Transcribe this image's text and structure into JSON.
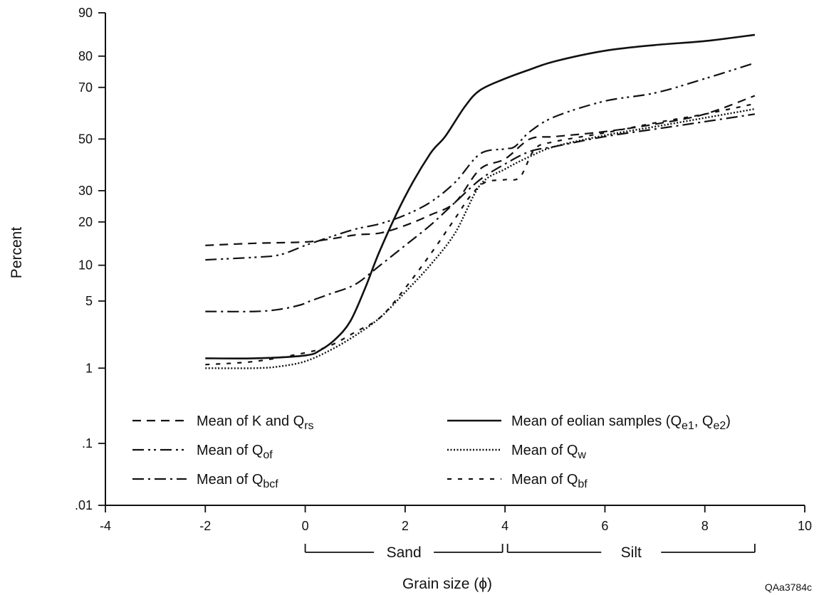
{
  "chart_data": {
    "type": "line",
    "title": "",
    "xlabel": "Grain size (ϕ)",
    "ylabel": "Percent",
    "xlim": [
      -4,
      10
    ],
    "ylim": [
      0.01,
      90
    ],
    "yscale": "probability",
    "grid": false,
    "legend_position": "bottom",
    "x_ticks": [
      -4,
      -2,
      0,
      2,
      4,
      6,
      8,
      10
    ],
    "x_tick_labels": [
      "-4",
      "-2",
      "0",
      "2",
      "4",
      "6",
      "8",
      "10"
    ],
    "y_ticks": [
      0.01,
      0.1,
      1,
      5,
      10,
      20,
      30,
      50,
      70,
      80,
      90
    ],
    "y_tick_labels": [
      ".01",
      ".1",
      "1",
      "5",
      "10",
      "20",
      "30",
      "50",
      "70",
      "80",
      "90"
    ],
    "series": [
      {
        "name": "Mean of K and Q",
        "subscript": "rs",
        "dash": "12 8",
        "stroke_width": 2.2,
        "x": [
          -2,
          -1,
          0,
          0.5,
          1,
          1.5,
          2,
          2.5,
          3,
          3.5,
          4,
          4.5,
          5,
          6,
          7,
          8,
          9
        ],
        "y": [
          14,
          14.5,
          14.8,
          15.5,
          16.5,
          17,
          19,
          22,
          26,
          38,
          42,
          50,
          51,
          53,
          56,
          60,
          67
        ]
      },
      {
        "name": "Mean of Q",
        "subscript": "of",
        "dash": "16 6 3 5 3 6",
        "stroke_width": 2.2,
        "x": [
          -2,
          -1,
          -0.5,
          0,
          0.5,
          1,
          1.5,
          2,
          2.5,
          3,
          3.5,
          4,
          4.2,
          4.5,
          5,
          6,
          7,
          8,
          9
        ],
        "y": [
          11,
          11.5,
          12,
          14,
          16,
          18,
          19.5,
          22,
          26,
          33,
          44,
          46,
          47,
          53,
          59,
          65,
          68,
          73,
          78
        ]
      },
      {
        "name": "Mean of Q",
        "subscript": "bcf",
        "dash": "16 6 3 6",
        "stroke_width": 2.2,
        "x": [
          -2,
          -1,
          -0.5,
          -0.1,
          0.1,
          0.5,
          1,
          1.5,
          2,
          2.5,
          3,
          3.5,
          4,
          4.5,
          5,
          6,
          7,
          8,
          9
        ],
        "y": [
          4,
          4,
          4.2,
          4.6,
          5,
          5.8,
          7,
          10,
          14,
          19,
          26,
          34,
          40,
          45,
          47,
          51,
          54,
          57,
          60
        ]
      },
      {
        "name": "Mean of eolian samples (Q",
        "subscript": "e1",
        "name_mid": ", Q",
        "subscript2": "e2",
        "name_end": ")",
        "dash": "",
        "stroke_width": 2.6,
        "x": [
          -2,
          -1,
          0,
          0.3,
          0.6,
          0.9,
          1.2,
          1.5,
          2,
          2.5,
          2.8,
          3.2,
          3.5,
          4,
          4.5,
          5,
          6,
          7,
          8,
          9
        ],
        "y": [
          1.3,
          1.3,
          1.4,
          1.6,
          2.1,
          3.2,
          6.5,
          13,
          28,
          44,
          51,
          63,
          69,
          73,
          76,
          78.5,
          81.5,
          83,
          84,
          85.5
        ]
      },
      {
        "name": "Mean of Q",
        "subscript": "w",
        "dash": "2 2.5",
        "stroke_width": 2.4,
        "x": [
          -2,
          -1,
          -0.5,
          0,
          0.5,
          1,
          1.5,
          2,
          2.5,
          3,
          3.5,
          4,
          4.5,
          5,
          6,
          7,
          8,
          9
        ],
        "y": [
          1,
          1,
          1.05,
          1.2,
          1.6,
          2.3,
          3.5,
          6,
          10,
          17,
          32,
          38,
          43,
          47,
          51.5,
          55,
          58.5,
          62
        ]
      },
      {
        "name": "Mean of Q",
        "subscript": "bf",
        "dash": "6 9",
        "stroke_width": 2.2,
        "x": [
          -2,
          -1,
          0,
          0.5,
          1,
          1.5,
          2,
          2.5,
          3,
          3.3,
          3.6,
          4,
          4.3,
          4.6,
          5,
          6,
          7,
          8,
          9
        ],
        "y": [
          1.1,
          1.2,
          1.5,
          1.8,
          2.5,
          3.5,
          6.5,
          12,
          21,
          28,
          33,
          34,
          35,
          46,
          49,
          52.5,
          56.5,
          60,
          64
        ]
      }
    ],
    "brackets": [
      {
        "label": "Sand",
        "from": 0,
        "to": 3.95
      },
      {
        "label": "Silt",
        "from": 4.05,
        "to": 9
      }
    ],
    "figure_code": "QAa3784c"
  }
}
